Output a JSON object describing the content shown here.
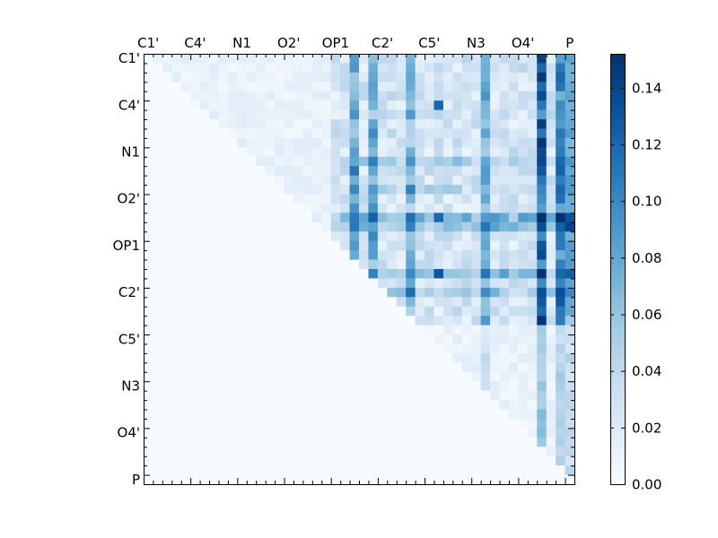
{
  "chart_data": {
    "type": "heatmap",
    "title": "",
    "xlabel": "",
    "ylabel": "",
    "x_tick_labels": [
      "C1'",
      "C4'",
      "N1",
      "O2'",
      "OP1",
      "C2'",
      "C5'",
      "N3",
      "O4'",
      "P"
    ],
    "y_tick_labels": [
      "C1'",
      "C4'",
      "N1",
      "O2'",
      "OP1",
      "C2'",
      "C5'",
      "N3",
      "O4'",
      "P"
    ],
    "n_cells": 46,
    "label_every": 5,
    "colorbar": {
      "min": 0.0,
      "max": 0.152,
      "ticks": [
        "0.00",
        "0.02",
        "0.04",
        "0.06",
        "0.08",
        "0.10",
        "0.12",
        "0.14"
      ],
      "tick_values": [
        0.0,
        0.02,
        0.04,
        0.06,
        0.08,
        0.1,
        0.12,
        0.14
      ],
      "colormap": "Blues",
      "colors": [
        "#f7fbff",
        "#deebf7",
        "#c6dbef",
        "#9ecae1",
        "#6baed6",
        "#4292c6",
        "#2171b5",
        "#08519c",
        "#08306b"
      ]
    },
    "hot_columns": [
      {
        "col": 22,
        "weight": 0.55
      },
      {
        "col": 24,
        "weight": 0.5
      },
      {
        "col": 28,
        "weight": 0.4
      },
      {
        "col": 36,
        "weight": 0.45
      },
      {
        "col": 42,
        "weight": 0.95
      },
      {
        "col": 44,
        "weight": 0.75
      },
      {
        "col": 45,
        "weight": 0.55
      }
    ],
    "hot_rows": [
      {
        "row": 11,
        "weight": 0.35
      },
      {
        "row": 14,
        "weight": 0.25
      },
      {
        "row": 17,
        "weight": 0.7
      },
      {
        "row": 18,
        "weight": 0.55
      },
      {
        "row": 23,
        "weight": 0.6
      },
      {
        "row": 25,
        "weight": 0.45
      }
    ],
    "strongest_cells": [
      {
        "row": 17,
        "col": 44,
        "value": 0.152
      },
      {
        "row": 23,
        "col": 42,
        "value": 0.15
      },
      {
        "row": 11,
        "col": 42,
        "value": 0.14
      },
      {
        "row": 17,
        "col": 31,
        "value": 0.12
      },
      {
        "row": 23,
        "col": 31,
        "value": 0.13
      },
      {
        "row": 5,
        "col": 31,
        "value": 0.12
      },
      {
        "row": 1,
        "col": 42,
        "value": 0.12
      },
      {
        "row": 2,
        "col": 44,
        "value": 0.12
      },
      {
        "row": 23,
        "col": 44,
        "value": 0.12
      },
      {
        "row": 11,
        "col": 44,
        "value": 0.12
      },
      {
        "row": 5,
        "col": 42,
        "value": 0.11
      },
      {
        "row": 1,
        "col": 44,
        "value": 0.11
      }
    ]
  }
}
